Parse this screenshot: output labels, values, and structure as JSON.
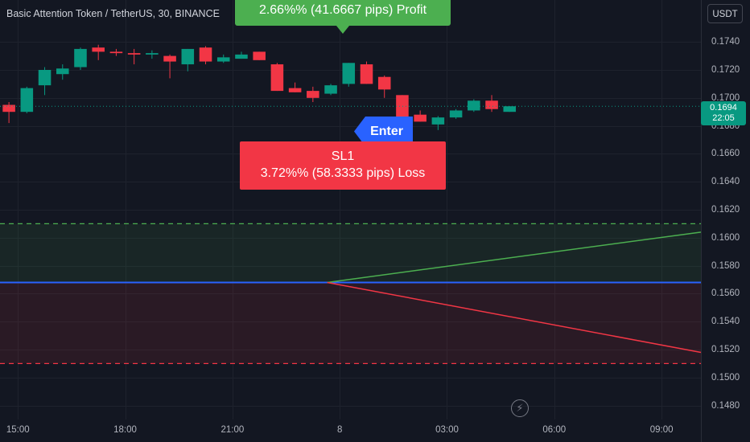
{
  "header": {
    "symbol_title": "Basic Attention Token / TetherUS, 30, BINANCE",
    "currency_button": "USDT"
  },
  "price_tag": {
    "price": "0.1694",
    "countdown": "22:05"
  },
  "labels": {
    "profit_text": "2.66%% (41.6667 pips) Profit",
    "enter_text": "Enter",
    "sl_title": "SL1",
    "sl_text": "3.72%% (58.3333 pips) Loss"
  },
  "icons": {
    "replay": "lightning-bolt-icon"
  },
  "colors": {
    "background": "#131722",
    "up": "#089981",
    "down": "#f23645",
    "profit": "#4caf50",
    "entry": "#2962ff",
    "grid": "#1e222d"
  },
  "chart_data": {
    "type": "candlestick",
    "title": "Basic Attention Token / TetherUS, 30, BINANCE",
    "y_range": [
      0.147,
      0.177
    ],
    "y_ticks": [
      "0.1740",
      "0.1720",
      "0.1700",
      "0.1680",
      "0.1660",
      "0.1640",
      "0.1620",
      "0.1600",
      "0.1580",
      "0.1560",
      "0.1540",
      "0.1520",
      "0.1500",
      "0.1480"
    ],
    "x_ticks": [
      "15:00",
      "18:00",
      "21:00",
      "8",
      "03:00",
      "06:00",
      "09:00"
    ],
    "x_tick_index": [
      0.5,
      6.5,
      12.5,
      18.5,
      24.5,
      30.5,
      36.5
    ],
    "x_range": [
      -0.5,
      38.7
    ],
    "last_price": 0.1694,
    "candles": [
      {
        "o": 0.1695,
        "h": 0.1697,
        "l": 0.1682,
        "c": 0.169
      },
      {
        "o": 0.169,
        "h": 0.1708,
        "l": 0.1689,
        "c": 0.1707
      },
      {
        "o": 0.1709,
        "h": 0.1722,
        "l": 0.1702,
        "c": 0.172
      },
      {
        "o": 0.1717,
        "h": 0.1724,
        "l": 0.1713,
        "c": 0.1721
      },
      {
        "o": 0.1722,
        "h": 0.1736,
        "l": 0.172,
        "c": 0.1735
      },
      {
        "o": 0.1736,
        "h": 0.1738,
        "l": 0.1727,
        "c": 0.1733
      },
      {
        "o": 0.1733,
        "h": 0.1735,
        "l": 0.173,
        "c": 0.1732
      },
      {
        "o": 0.1732,
        "h": 0.1735,
        "l": 0.1724,
        "c": 0.1731
      },
      {
        "o": 0.1731,
        "h": 0.1734,
        "l": 0.1728,
        "c": 0.1732
      },
      {
        "o": 0.173,
        "h": 0.1731,
        "l": 0.1714,
        "c": 0.1726
      },
      {
        "o": 0.1724,
        "h": 0.1735,
        "l": 0.1719,
        "c": 0.1735
      },
      {
        "o": 0.1736,
        "h": 0.1737,
        "l": 0.1724,
        "c": 0.1726
      },
      {
        "o": 0.1726,
        "h": 0.1731,
        "l": 0.1725,
        "c": 0.1729
      },
      {
        "o": 0.1728,
        "h": 0.1733,
        "l": 0.1728,
        "c": 0.1731
      },
      {
        "o": 0.1733,
        "h": 0.1733,
        "l": 0.1727,
        "c": 0.1727
      },
      {
        "o": 0.1724,
        "h": 0.1725,
        "l": 0.1705,
        "c": 0.1705
      },
      {
        "o": 0.1707,
        "h": 0.1711,
        "l": 0.1704,
        "c": 0.1704
      },
      {
        "o": 0.1705,
        "h": 0.1708,
        "l": 0.1697,
        "c": 0.17
      },
      {
        "o": 0.1703,
        "h": 0.171,
        "l": 0.1702,
        "c": 0.1709
      },
      {
        "o": 0.171,
        "h": 0.1725,
        "l": 0.1708,
        "c": 0.1725
      },
      {
        "o": 0.1724,
        "h": 0.1726,
        "l": 0.171,
        "c": 0.171
      },
      {
        "o": 0.1715,
        "h": 0.1716,
        "l": 0.17,
        "c": 0.1706
      },
      {
        "o": 0.1702,
        "h": 0.1702,
        "l": 0.1683,
        "c": 0.1684
      },
      {
        "o": 0.1688,
        "h": 0.1691,
        "l": 0.1683,
        "c": 0.1683
      },
      {
        "o": 0.1681,
        "h": 0.1687,
        "l": 0.1677,
        "c": 0.1686
      },
      {
        "o": 0.1686,
        "h": 0.1692,
        "l": 0.1685,
        "c": 0.1691
      },
      {
        "o": 0.1691,
        "h": 0.1699,
        "l": 0.169,
        "c": 0.1698
      },
      {
        "o": 0.1698,
        "h": 0.1702,
        "l": 0.169,
        "c": 0.1692
      },
      {
        "o": 0.169,
        "h": 0.1694,
        "l": 0.169,
        "c": 0.1694
      }
    ],
    "position": {
      "entry_price": 0.1568,
      "take_profit": 0.161,
      "stop_loss": 0.151,
      "start_index": 17.8,
      "end_index": 38.7,
      "profit_line_end": 0.1604,
      "loss_line_end": 0.1518
    }
  }
}
